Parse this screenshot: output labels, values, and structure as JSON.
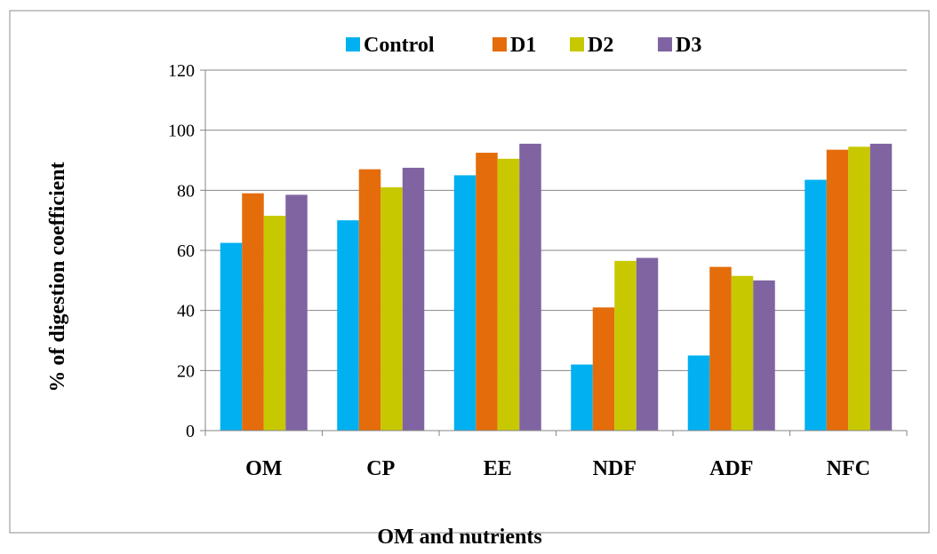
{
  "chart_data": {
    "type": "bar",
    "title": "",
    "xlabel": "OM and nutrients",
    "ylabel": "% of digestion coefficient",
    "categories": [
      "OM",
      "CP",
      "EE",
      "NDF",
      "ADF",
      "NFC"
    ],
    "ylim": [
      0,
      120
    ],
    "yticks": [
      0,
      20,
      40,
      60,
      80,
      100,
      120
    ],
    "grid": "horizontal major gridlines",
    "legend_position": "top",
    "series": [
      {
        "name": "Control",
        "color": "#00B0F0",
        "values": [
          62.5,
          70,
          85,
          22,
          25,
          83.5
        ]
      },
      {
        "name": "D1",
        "color": "#E46C0A",
        "values": [
          79,
          87,
          92.5,
          41,
          54.5,
          93.5
        ]
      },
      {
        "name": "D2",
        "color": "#C8C800",
        "values": [
          71.5,
          81,
          90.5,
          56.5,
          51.5,
          94.5
        ]
      },
      {
        "name": "D3",
        "color": "#8064A2",
        "values": [
          78.5,
          87.5,
          95.5,
          57.5,
          50,
          95.5
        ]
      }
    ]
  }
}
